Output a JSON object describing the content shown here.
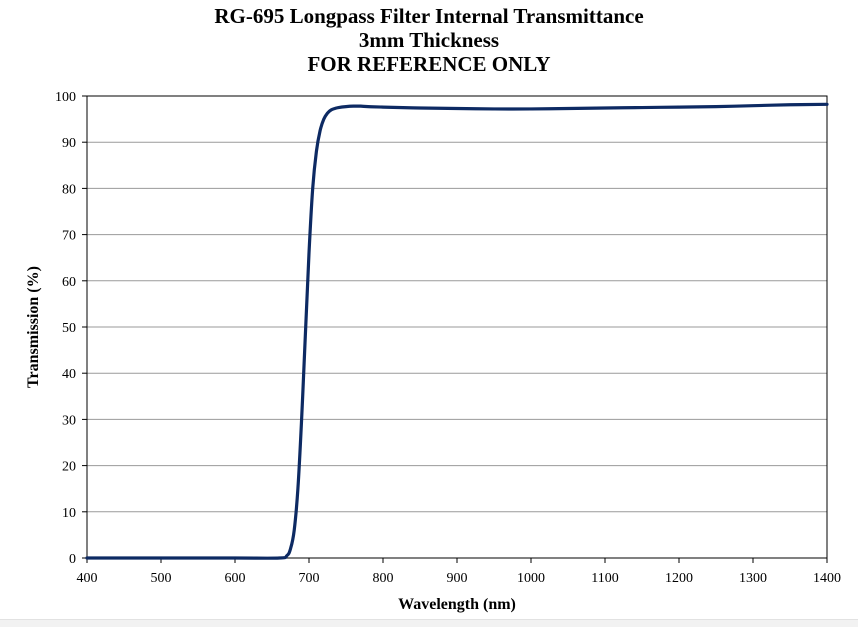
{
  "chart_data": {
    "type": "line",
    "title": "RG-695 Longpass Filter Internal Transmittance",
    "subtitle": "3mm Thickness",
    "note": "FOR REFERENCE ONLY",
    "xlabel": "Wavelength (nm)",
    "ylabel": "Transmission (%)",
    "xlim": [
      400,
      1400
    ],
    "ylim": [
      0,
      100
    ],
    "xticks": [
      400,
      500,
      600,
      700,
      800,
      900,
      1000,
      1100,
      1200,
      1300,
      1400
    ],
    "yticks": [
      0,
      10,
      20,
      30,
      40,
      50,
      60,
      70,
      80,
      90,
      100
    ],
    "grid": true,
    "legend": "none",
    "line_color": "#0d2a63",
    "series": [
      {
        "x": [
          400,
          500,
          600,
          660,
          670,
          675,
          680,
          685,
          690,
          695,
          700,
          705,
          710,
          715,
          720,
          725,
          730,
          735,
          740,
          750,
          760,
          770,
          780,
          800,
          850,
          900,
          950,
          1000,
          1050,
          1100,
          1150,
          1200,
          1250,
          1300,
          1350,
          1400
        ],
        "y": [
          0,
          0,
          0,
          0,
          0.5,
          2,
          6,
          15,
          30,
          48,
          66,
          80,
          88,
          92.5,
          95,
          96.3,
          97,
          97.3,
          97.5,
          97.7,
          97.8,
          97.8,
          97.7,
          97.6,
          97.4,
          97.3,
          97.2,
          97.2,
          97.3,
          97.4,
          97.5,
          97.6,
          97.7,
          97.9,
          98.1,
          98.2
        ]
      }
    ]
  }
}
